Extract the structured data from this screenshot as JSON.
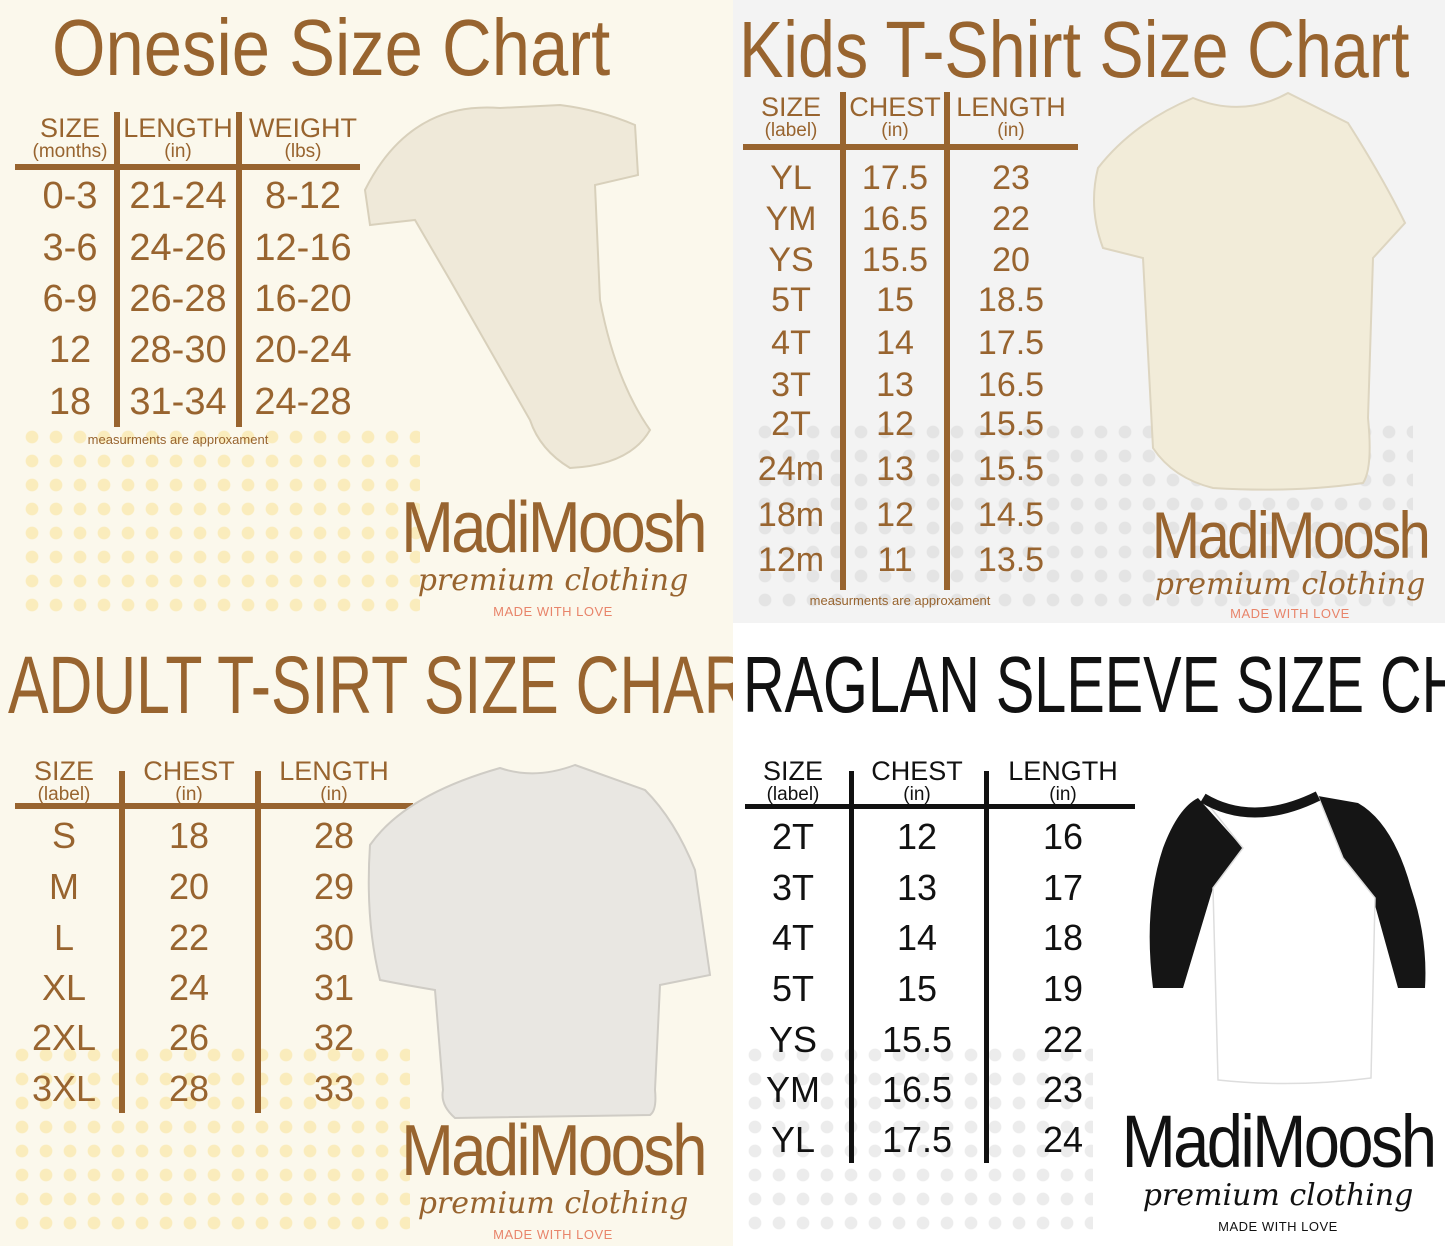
{
  "colors": {
    "brown": "#98642f",
    "salmon": "#e8846a",
    "black": "#111111"
  },
  "brand": {
    "name": "MadiMoosh",
    "tagline": "premium clothing",
    "motto": "MADE WITH LOVE"
  },
  "onesie": {
    "title": "Onesie Size Chart",
    "headers": [
      {
        "label": "SIZE",
        "unit": "(months)"
      },
      {
        "label": "LENGTH",
        "unit": "(in)"
      },
      {
        "label": "WEIGHT",
        "unit": "(lbs)"
      }
    ],
    "rows": [
      [
        "0-3",
        "21-24",
        "8-12"
      ],
      [
        "3-6",
        "24-26",
        "12-16"
      ],
      [
        "6-9",
        "26-28",
        "16-20"
      ],
      [
        "12",
        "28-30",
        "20-24"
      ],
      [
        "18",
        "31-34",
        "24-28"
      ]
    ],
    "note": "measurments are approxament"
  },
  "kids": {
    "title": "Kids T-Shirt Size Chart",
    "headers": [
      {
        "label": "SIZE",
        "unit": "(label)"
      },
      {
        "label": "CHEST",
        "unit": "(in)"
      },
      {
        "label": "LENGTH",
        "unit": "(in)"
      }
    ],
    "rows": [
      [
        "YL",
        "17.5",
        "23"
      ],
      [
        "YM",
        "16.5",
        "22"
      ],
      [
        "YS",
        "15.5",
        "20"
      ],
      [
        "5T",
        "15",
        "18.5"
      ],
      [
        "4T",
        "14",
        "17.5"
      ],
      [
        "3T",
        "13",
        "16.5"
      ],
      [
        "2T",
        "12",
        "15.5"
      ],
      [
        "24m",
        "13",
        "15.5"
      ],
      [
        "18m",
        "12",
        "14.5"
      ],
      [
        "12m",
        "11",
        "13.5"
      ]
    ],
    "note": "measurments are approxament"
  },
  "adult": {
    "title": "ADULT T-SIRT SIZE CHART",
    "headers": [
      {
        "label": "SIZE",
        "unit": "(label)"
      },
      {
        "label": "CHEST",
        "unit": "(in)"
      },
      {
        "label": "LENGTH",
        "unit": "(in)"
      }
    ],
    "rows": [
      [
        "S",
        "18",
        "28"
      ],
      [
        "M",
        "20",
        "29"
      ],
      [
        "L",
        "22",
        "30"
      ],
      [
        "XL",
        "24",
        "31"
      ],
      [
        "2XL",
        "26",
        "32"
      ],
      [
        "3XL",
        "28",
        "33"
      ]
    ]
  },
  "raglan": {
    "title": "RAGLAN SLEEVE SIZE CHART",
    "headers": [
      {
        "label": "SIZE",
        "unit": "(label)"
      },
      {
        "label": "CHEST",
        "unit": "(in)"
      },
      {
        "label": "LENGTH",
        "unit": "(in)"
      }
    ],
    "rows": [
      [
        "2T",
        "12",
        "16"
      ],
      [
        "3T",
        "13",
        "17"
      ],
      [
        "4T",
        "14",
        "18"
      ],
      [
        "5T",
        "15",
        "19"
      ],
      [
        "YS",
        "15.5",
        "22"
      ],
      [
        "YM",
        "16.5",
        "23"
      ],
      [
        "YL",
        "17.5",
        "24"
      ]
    ]
  }
}
